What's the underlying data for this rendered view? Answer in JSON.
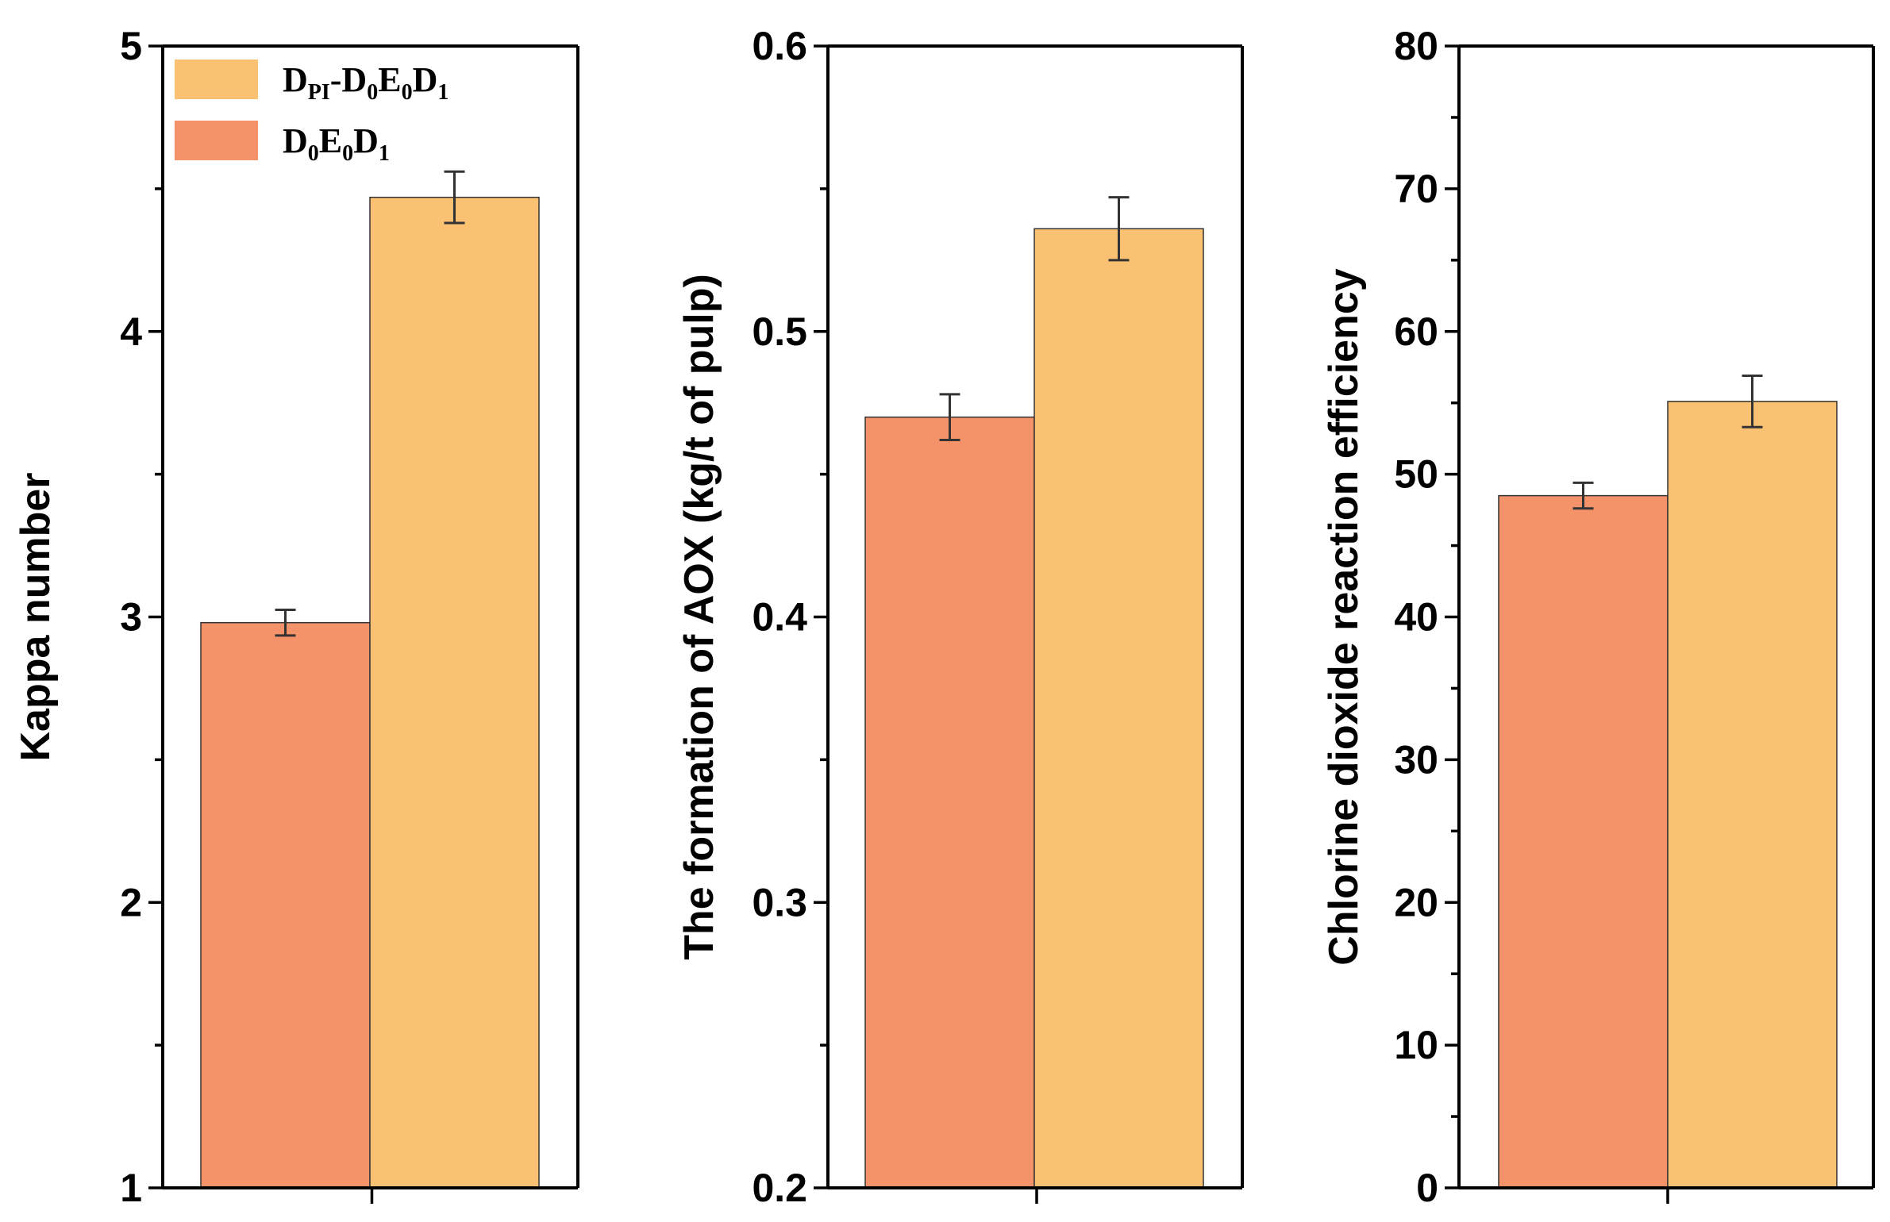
{
  "colors": {
    "series_a": "#f4936a",
    "series_b": "#fbc173"
  },
  "legend": {
    "placement": "top-left",
    "items": [
      {
        "series": 1,
        "label_parts": [
          [
            "D",
            ""
          ],
          [
            "PI",
            "sub"
          ],
          [
            "-D",
            ""
          ],
          [
            "0",
            "sub"
          ],
          [
            "E",
            ""
          ],
          [
            "0",
            "sub"
          ],
          [
            "D",
            ""
          ],
          [
            "1",
            "sub"
          ]
        ]
      },
      {
        "series": 0,
        "label_parts": [
          [
            "D",
            ""
          ],
          [
            "0",
            "sub"
          ],
          [
            "E",
            ""
          ],
          [
            "0",
            "sub"
          ],
          [
            "D",
            ""
          ],
          [
            "1",
            "sub"
          ]
        ]
      }
    ]
  },
  "chart_data": [
    {
      "type": "bar",
      "ylabel": "Kappa number",
      "ylim": [
        1,
        5
      ],
      "ticks": [
        "1",
        "2",
        "3",
        "4",
        "5"
      ],
      "minor_step": 0.5,
      "series": [
        {
          "name": "D0E0D1",
          "value": 2.98,
          "error": 0.045
        },
        {
          "name": "DPI-D0E0D1",
          "value": 4.47,
          "error": 0.09
        }
      ]
    },
    {
      "type": "bar",
      "ylabel": "The formation of AOX (kg/t of pulp)",
      "ylim": [
        0.2,
        0.6
      ],
      "ticks": [
        "0.2",
        "0.3",
        "0.4",
        "0.5",
        "0.6"
      ],
      "minor_step": 0.05,
      "series": [
        {
          "name": "D0E0D1",
          "value": 0.47,
          "error": 0.008
        },
        {
          "name": "DPI-D0E0D1",
          "value": 0.536,
          "error": 0.011
        }
      ]
    },
    {
      "type": "bar",
      "ylabel": "Chlorine dioxide reaction efficiency",
      "ylim": [
        0,
        80
      ],
      "ticks": [
        "0",
        "10",
        "20",
        "30",
        "40",
        "50",
        "60",
        "70",
        "80"
      ],
      "minor_step": 5,
      "series": [
        {
          "name": "D0E0D1",
          "value": 48.5,
          "error": 0.9
        },
        {
          "name": "DPI-D0E0D1",
          "value": 55.1,
          "error": 1.8
        }
      ]
    }
  ]
}
